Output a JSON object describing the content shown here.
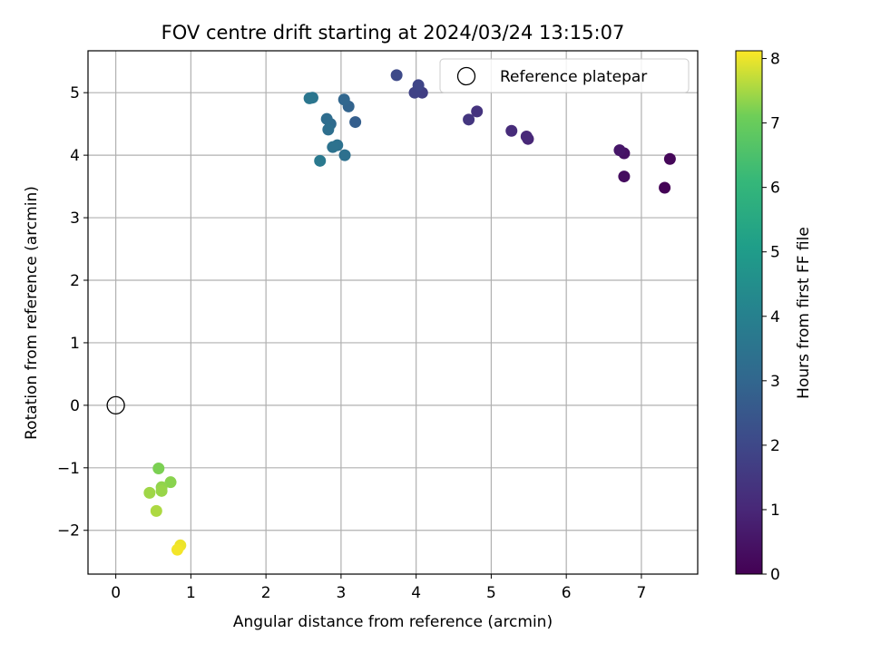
{
  "chart_data": {
    "type": "scatter",
    "title": "FOV centre drift starting at 2024/03/24 13:15:07",
    "xlabel": "Angular distance from reference (arcmin)",
    "ylabel": "Rotation from reference (arcmin)",
    "xlim": [
      -0.37,
      7.75
    ],
    "ylim": [
      -2.7,
      5.67
    ],
    "xticks": [
      0,
      1,
      2,
      3,
      4,
      5,
      6,
      7
    ],
    "yticks": [
      -2,
      -1,
      0,
      1,
      2,
      3,
      4,
      5
    ],
    "grid": true,
    "legend": {
      "placement": "top-right",
      "entries": [
        {
          "label": "Reference platepar",
          "marker": "open-circle"
        }
      ]
    },
    "reference_point": {
      "x": 0,
      "y": 0
    },
    "colorbar": {
      "label": "Hours from first FF file",
      "range": [
        0,
        8.12
      ],
      "ticks": [
        0,
        1,
        2,
        3,
        4,
        5,
        6,
        7,
        8
      ],
      "colormap": "viridis"
    },
    "points": [
      {
        "x": 7.31,
        "y": 3.48,
        "hours": 0.05
      },
      {
        "x": 7.38,
        "y": 3.94,
        "hours": 0.15
      },
      {
        "x": 6.77,
        "y": 3.66,
        "hours": 0.3
      },
      {
        "x": 6.77,
        "y": 4.03,
        "hours": 0.45
      },
      {
        "x": 6.71,
        "y": 4.08,
        "hours": 0.55
      },
      {
        "x": 5.49,
        "y": 4.26,
        "hours": 0.95
      },
      {
        "x": 5.47,
        "y": 4.3,
        "hours": 1.05
      },
      {
        "x": 5.27,
        "y": 4.39,
        "hours": 1.15
      },
      {
        "x": 4.81,
        "y": 4.7,
        "hours": 1.35
      },
      {
        "x": 4.7,
        "y": 4.57,
        "hours": 1.45
      },
      {
        "x": 4.08,
        "y": 5.0,
        "hours": 1.7
      },
      {
        "x": 3.98,
        "y": 5.0,
        "hours": 1.8
      },
      {
        "x": 4.03,
        "y": 5.12,
        "hours": 1.9
      },
      {
        "x": 3.74,
        "y": 5.28,
        "hours": 2.05
      },
      {
        "x": 3.19,
        "y": 4.53,
        "hours": 2.75
      },
      {
        "x": 3.1,
        "y": 4.78,
        "hours": 2.9
      },
      {
        "x": 3.04,
        "y": 4.89,
        "hours": 3.0
      },
      {
        "x": 2.86,
        "y": 4.5,
        "hours": 3.15
      },
      {
        "x": 2.81,
        "y": 4.58,
        "hours": 3.25
      },
      {
        "x": 2.83,
        "y": 4.41,
        "hours": 3.3
      },
      {
        "x": 3.05,
        "y": 4.0,
        "hours": 3.35
      },
      {
        "x": 2.95,
        "y": 4.16,
        "hours": 3.4
      },
      {
        "x": 2.89,
        "y": 4.13,
        "hours": 3.45
      },
      {
        "x": 2.62,
        "y": 4.92,
        "hours": 3.55
      },
      {
        "x": 2.58,
        "y": 4.91,
        "hours": 3.6
      },
      {
        "x": 2.72,
        "y": 3.91,
        "hours": 3.7
      },
      {
        "x": 0.57,
        "y": -1.01,
        "hours": 7.2
      },
      {
        "x": 0.73,
        "y": -1.23,
        "hours": 7.3
      },
      {
        "x": 0.61,
        "y": -1.31,
        "hours": 7.35
      },
      {
        "x": 0.61,
        "y": -1.37,
        "hours": 7.4
      },
      {
        "x": 0.45,
        "y": -1.4,
        "hours": 7.45
      },
      {
        "x": 0.54,
        "y": -1.69,
        "hours": 7.55
      },
      {
        "x": 0.86,
        "y": -2.24,
        "hours": 8.0
      },
      {
        "x": 0.82,
        "y": -2.31,
        "hours": 8.05
      }
    ]
  }
}
